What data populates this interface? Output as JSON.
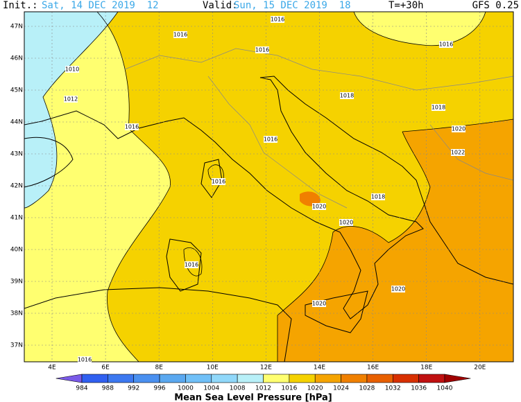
{
  "header": {
    "init_label": "Init.:",
    "init": "Sat, 14 DEC 2019  12",
    "valid_label": "Valid:",
    "valid": "Sun, 15 DEC 2019  18",
    "lead": "T=+30h",
    "model": "GFS 0.25"
  },
  "latitudes": [
    "47N",
    "46N",
    "45N",
    "44N",
    "43N",
    "42N",
    "41N",
    "40N",
    "39N",
    "38N",
    "37N"
  ],
  "longitudes": [
    "4E",
    "6E",
    "8E",
    "10E",
    "12E",
    "14E",
    "16E",
    "18E",
    "20E"
  ],
  "isobar_labels": [
    "1016",
    "1016",
    "1016",
    "1016",
    "1010",
    "1012",
    "1016",
    "1018",
    "1018",
    "1020",
    "1022",
    "1016",
    "1016",
    "1020",
    "1018",
    "1020",
    "1016",
    "1020",
    "1020",
    "1016"
  ],
  "colorbar": {
    "levels": [
      984,
      988,
      992,
      996,
      1000,
      1004,
      1008,
      1012,
      1016,
      1020,
      1024,
      1028,
      1032,
      1036,
      1040
    ],
    "colors": [
      "#7a5ae8",
      "#3060f0",
      "#3c78f0",
      "#4a90f0",
      "#5aa8f0",
      "#70c0f8",
      "#90d8fa",
      "#b8f0f8",
      "#ffff70",
      "#f5d200",
      "#f5a400",
      "#f08000",
      "#e86000",
      "#d83000",
      "#c01010",
      "#a00000"
    ],
    "title": "Mean Sea Level Pressure [hPa]"
  }
}
